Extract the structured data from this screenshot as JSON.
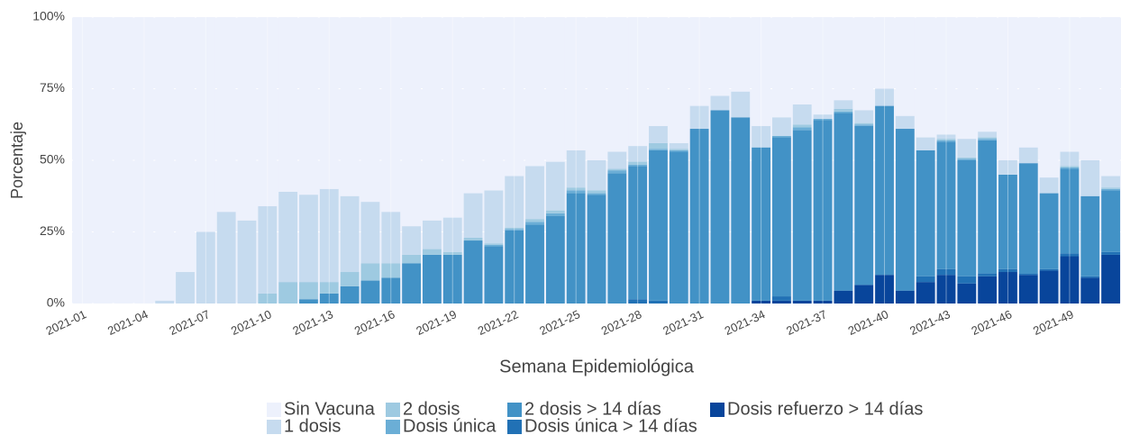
{
  "chart_data": {
    "type": "stacked_bar",
    "x_label": "Semana Epidemiológica",
    "y_label": "Porcentaje",
    "categories": [
      "2021-01",
      null,
      null,
      "2021-04",
      null,
      null,
      "2021-07",
      null,
      null,
      "2021-10",
      null,
      null,
      "2021-13",
      null,
      null,
      "2021-16",
      null,
      null,
      "2021-19",
      null,
      null,
      "2021-22",
      null,
      null,
      "2021-25",
      null,
      null,
      "2021-28",
      null,
      null,
      "2021-31",
      null,
      null,
      "2021-34",
      null,
      null,
      "2021-37",
      null,
      null,
      "2021-40",
      null,
      null,
      "2021-43",
      null,
      null,
      "2021-46",
      null,
      null,
      "2021-49",
      null,
      null
    ],
    "series": [
      {
        "name": "Sin Vacuna",
        "color": "#edf1fc",
        "values": [
          100,
          100,
          100,
          100,
          99,
          89,
          75,
          68,
          71,
          66,
          61,
          62,
          60,
          62.5,
          64.5,
          68,
          73,
          71,
          70,
          61.5,
          60.5,
          55.5,
          52,
          50.5,
          46.5,
          50,
          47,
          45,
          38,
          44,
          31,
          27.5,
          26,
          38,
          35,
          30.5,
          34,
          29,
          32.5,
          25,
          34.5,
          42,
          41,
          42.5,
          40,
          50,
          45.5,
          56,
          47,
          50,
          55.5
        ]
      },
      {
        "name": "1 dosis",
        "color": "#c6dbef",
        "values": [
          0,
          0,
          0,
          0,
          1,
          11,
          25,
          32,
          29,
          30.5,
          31.5,
          30.5,
          32.5,
          26.5,
          21.5,
          18,
          10,
          10,
          12,
          15.5,
          18.5,
          18,
          18.5,
          17,
          13,
          10.5,
          6,
          5.5,
          6,
          2,
          8,
          5,
          9,
          7.5,
          6.5,
          7,
          1.5,
          3,
          4.5,
          6,
          4.5,
          4.5,
          1.5,
          6.5,
          2,
          5,
          5.5,
          5.5,
          5,
          12.5,
          4
        ]
      },
      {
        "name": "2 dosis",
        "color": "#9ecae1",
        "values": [
          0,
          0,
          0,
          0,
          0,
          0,
          0,
          0,
          0,
          3.5,
          7.5,
          6,
          4,
          5,
          6,
          5,
          3,
          2,
          1,
          1,
          0.5,
          0.5,
          1,
          1,
          1,
          1,
          0.5,
          1,
          2,
          0.5,
          0,
          0,
          0,
          0,
          0,
          1,
          0,
          1,
          0.5,
          0,
          0,
          0,
          0.5,
          0.5,
          0.5,
          0,
          0,
          0,
          0.5,
          0,
          0.5
        ]
      },
      {
        "name": "Dosis única",
        "color": "#6baed6",
        "values": [
          0,
          0,
          0,
          0,
          0,
          0,
          0,
          0,
          0,
          0,
          0,
          0,
          0,
          0,
          0,
          0,
          0,
          0,
          0,
          0,
          0.5,
          0.5,
          1,
          1,
          1,
          0.5,
          1,
          0.5,
          0.5,
          0.5,
          0,
          0,
          0,
          0,
          0.5,
          1,
          0.5,
          0.5,
          0.5,
          0,
          0,
          0,
          0.5,
          0.5,
          0.5,
          0,
          0,
          0,
          0.5,
          0,
          0.5
        ]
      },
      {
        "name": "2 dosis > 14 días",
        "color": "#4292c6",
        "values": [
          0,
          0,
          0,
          0,
          0,
          0,
          0,
          0,
          0,
          0,
          0,
          1.5,
          3.5,
          6,
          8,
          9,
          14,
          17,
          17,
          22,
          20,
          25.5,
          27.5,
          30.5,
          38.5,
          38,
          45.5,
          46.5,
          52.5,
          53,
          61,
          67.5,
          65,
          53.5,
          55.5,
          59.5,
          63,
          62,
          55.5,
          59,
          56.5,
          44,
          44.5,
          40.5,
          46.5,
          33,
          38.5,
          26.5,
          29.5,
          28,
          21.5
        ]
      },
      {
        "name": "Dosis única > 14 días",
        "color": "#2171b5",
        "values": [
          0,
          0,
          0,
          0,
          0,
          0,
          0,
          0,
          0,
          0,
          0,
          0,
          0,
          0,
          0,
          0,
          0,
          0,
          0,
          0,
          0,
          0,
          0,
          0,
          0,
          0,
          0,
          1.5,
          1,
          0,
          0,
          0,
          0,
          0,
          1.5,
          0,
          0,
          0,
          0,
          0,
          0,
          2,
          2,
          2.5,
          1,
          1,
          0.5,
          0.5,
          1,
          0.5,
          1
        ]
      },
      {
        "name": "Dosis refuerzo > 14 días",
        "color": "#08459b",
        "values": [
          0,
          0,
          0,
          0,
          0,
          0,
          0,
          0,
          0,
          0,
          0,
          0,
          0,
          0,
          0,
          0,
          0,
          0,
          0,
          0,
          0,
          0,
          0,
          0,
          0,
          0,
          0,
          0,
          0,
          0,
          0,
          0,
          0,
          1,
          1,
          1,
          1,
          4.5,
          6.5,
          10,
          4.5,
          7.5,
          10,
          7,
          9.5,
          11,
          10,
          11.5,
          16.5,
          9,
          17
        ]
      }
    ],
    "ylim": [
      0,
      100
    ],
    "yticks": [
      {
        "value": 0,
        "label": "0%"
      },
      {
        "value": 25,
        "label": "25%"
      },
      {
        "value": 50,
        "label": "50%"
      },
      {
        "value": 75,
        "label": "75%"
      },
      {
        "value": 100,
        "label": "100%"
      }
    ],
    "grid": true
  }
}
